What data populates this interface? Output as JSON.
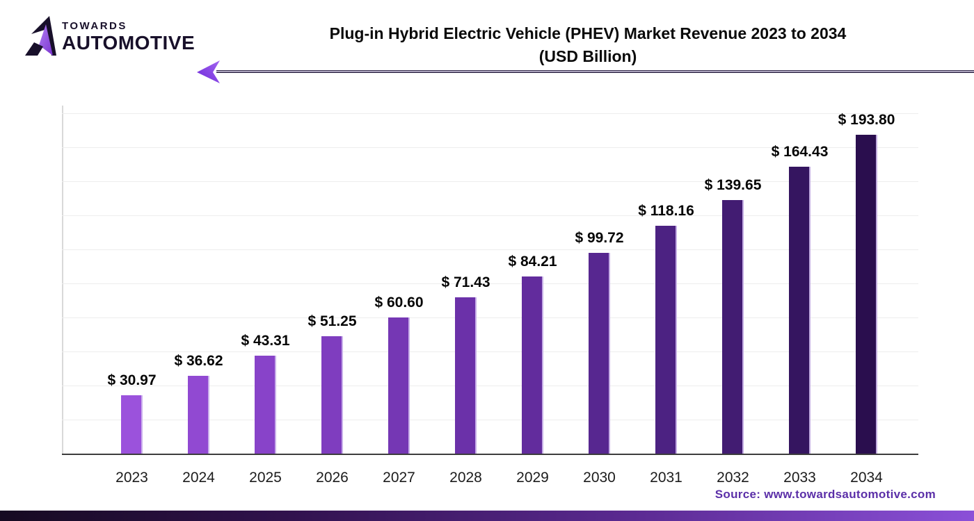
{
  "brand": {
    "towards": "TOWARDS",
    "automotive": "AUTOMOTIVE"
  },
  "title": {
    "line1": "Plug-in Hybrid Electric Vehicle (PHEV) Market Revenue 2023 to 2034",
    "line2": "(USD Billion)"
  },
  "source": {
    "label": "Source: www.towardsautomotive.com"
  },
  "chart_data": {
    "type": "bar",
    "title": "Plug-in Hybrid Electric Vehicle (PHEV) Market Revenue 2023 to 2034 (USD Billion)",
    "categories": [
      "2023",
      "2024",
      "2025",
      "2026",
      "2027",
      "2028",
      "2029",
      "2030",
      "2031",
      "2032",
      "2033",
      "2034"
    ],
    "values": [
      30.97,
      36.62,
      43.31,
      51.25,
      60.6,
      71.43,
      84.21,
      99.72,
      118.16,
      139.65,
      164.43,
      193.8
    ],
    "value_labels": [
      "$ 30.97",
      "$ 36.62",
      "$ 43.31",
      "$ 51.25",
      "$ 60.60",
      "$ 71.43",
      "$ 84.21",
      "$ 99.72",
      "$ 118.16",
      "$ 139.65",
      "$ 164.43",
      "$ 193.80"
    ],
    "bar_colors": [
      "#9b52dc",
      "#9149d2",
      "#8843c9",
      "#7f3dbf",
      "#7537b4",
      "#6b31a9",
      "#622c9d",
      "#572790",
      "#4c2282",
      "#421c72",
      "#351560",
      "#2a0e4e"
    ],
    "xlabel": "",
    "ylabel": "",
    "legend": "none",
    "grid": "horizontal",
    "gridline_color": "#ededed",
    "axis_color": "#3c3c3c",
    "accent_color": "#7c3aed",
    "source_text_color": "#5b2fa8"
  }
}
